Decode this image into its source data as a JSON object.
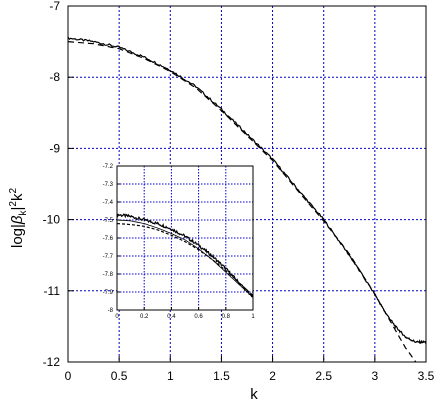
{
  "chart_data": [
    {
      "type": "line",
      "xlabel": "k",
      "ylabel": "log|β_k|²k²",
      "ylabel_parts": {
        "pre": "log|",
        "beta": "β",
        "sub": "k",
        "mid": "|",
        "sup1": "2",
        "k": "k",
        "sup2": "2"
      },
      "xlim": [
        0,
        3.5
      ],
      "ylim": [
        -12,
        -7
      ],
      "grid": true,
      "grid_color": "#0000cc",
      "x_ticks": [
        0,
        0.5,
        1,
        1.5,
        2,
        2.5,
        3,
        3.5
      ],
      "x_tick_labels": [
        "0",
        "0.5",
        "1",
        "1.5",
        "2",
        "2.5",
        "3",
        "3.5"
      ],
      "y_ticks": [
        -12,
        -11,
        -10,
        -9,
        -8,
        -7
      ],
      "y_tick_labels": [
        "-12",
        "-11",
        "-10",
        "-9",
        "-8",
        "-7"
      ],
      "series": [
        {
          "style": "solid-noisy",
          "x": [
            0,
            0.25,
            0.5,
            0.75,
            1.0,
            1.25,
            1.5,
            1.75,
            2.0,
            2.25,
            2.5,
            2.75,
            3.0,
            3.1,
            3.2,
            3.3,
            3.4,
            3.5
          ],
          "y": [
            -7.45,
            -7.5,
            -7.58,
            -7.72,
            -7.9,
            -8.13,
            -8.45,
            -8.8,
            -9.15,
            -9.58,
            -10.0,
            -10.5,
            -11.05,
            -11.3,
            -11.5,
            -11.65,
            -11.72,
            -11.72
          ]
        },
        {
          "style": "dashed",
          "x": [
            0,
            0.25,
            0.5,
            0.75,
            1.0,
            1.25,
            1.5,
            1.75,
            2.0,
            2.25,
            2.5,
            2.75,
            3.0,
            3.1,
            3.2,
            3.3,
            3.4
          ],
          "y": [
            -7.5,
            -7.53,
            -7.6,
            -7.74,
            -7.92,
            -8.15,
            -8.47,
            -8.82,
            -9.17,
            -9.6,
            -10.02,
            -10.48,
            -11.05,
            -11.3,
            -11.55,
            -11.8,
            -12.0
          ]
        }
      ]
    },
    {
      "type": "line",
      "position_hint": "inset lower-left",
      "xlim": [
        0,
        1
      ],
      "ylim": [
        -8,
        -7.2
      ],
      "grid": true,
      "x_ticks": [
        0,
        0.2,
        0.4,
        0.6,
        0.8,
        1
      ],
      "x_tick_labels": [
        "0",
        "0.2",
        "0.4",
        "0.6",
        "0.8",
        "1"
      ],
      "y_ticks": [
        -8,
        -7.9,
        -7.8,
        -7.7,
        -7.6,
        -7.5,
        -7.4,
        -7.3,
        -7.2
      ],
      "y_tick_labels": [
        "-8",
        "-7.9",
        "-7.8",
        "-7.7",
        "-7.6",
        "-7.5",
        "-7.4",
        "-7.3",
        "-7.2"
      ],
      "series": [
        {
          "style": "solid-noisy",
          "x": [
            0,
            0.1,
            0.2,
            0.3,
            0.4,
            0.5,
            0.6,
            0.7,
            0.8,
            0.9,
            1.0
          ],
          "y": [
            -7.47,
            -7.48,
            -7.5,
            -7.52,
            -7.55,
            -7.59,
            -7.64,
            -7.7,
            -7.77,
            -7.85,
            -7.93
          ]
        },
        {
          "style": "solid-thin",
          "x": [
            0,
            0.1,
            0.2,
            0.3,
            0.4,
            0.5,
            0.6,
            0.7,
            0.8,
            0.9,
            1.0
          ],
          "y": [
            -7.5,
            -7.505,
            -7.52,
            -7.545,
            -7.575,
            -7.61,
            -7.66,
            -7.72,
            -7.79,
            -7.86,
            -7.93
          ]
        },
        {
          "style": "dashed",
          "x": [
            0,
            0.1,
            0.2,
            0.3,
            0.4,
            0.5,
            0.6,
            0.7,
            0.8,
            0.9,
            1.0
          ],
          "y": [
            -7.52,
            -7.525,
            -7.535,
            -7.555,
            -7.585,
            -7.62,
            -7.665,
            -7.72,
            -7.78,
            -7.85,
            -7.92
          ]
        }
      ]
    }
  ]
}
